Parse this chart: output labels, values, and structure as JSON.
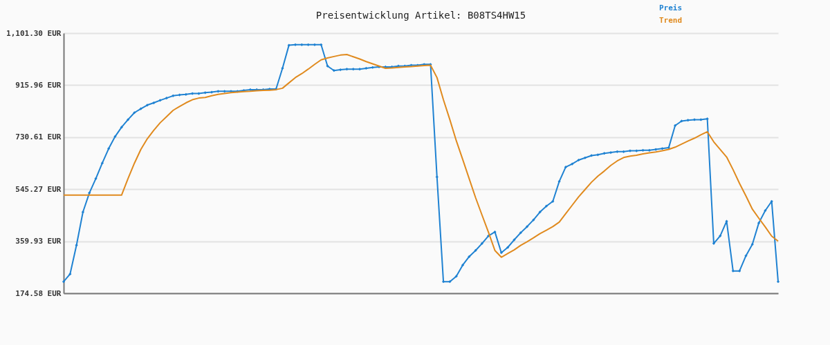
{
  "chart_data": {
    "type": "line",
    "title": "Preisentwicklung Artikel: B08TS4HW15",
    "categories": [
      null,
      null,
      null,
      null,
      null,
      null,
      null,
      null,
      null,
      null,
      null,
      null,
      null,
      null,
      null,
      null,
      null,
      null,
      null,
      null,
      null,
      null,
      null,
      null,
      null,
      null,
      null,
      null,
      null,
      null,
      null,
      null,
      null,
      null,
      null,
      null,
      null,
      null,
      null,
      null,
      null,
      null,
      null,
      null,
      null,
      null,
      null,
      null,
      null,
      null,
      null,
      null,
      null,
      null,
      null,
      null,
      null,
      null,
      null,
      null,
      null,
      null,
      null,
      null,
      null,
      null,
      null,
      null,
      null,
      null,
      null,
      null,
      null,
      null,
      null,
      null,
      null,
      null,
      null,
      null,
      null,
      null,
      null,
      null,
      null,
      null,
      null,
      null,
      null,
      null,
      null,
      null,
      null,
      null,
      null,
      null,
      null,
      null,
      null,
      null,
      null,
      null,
      null,
      null,
      null,
      null,
      null,
      null,
      null,
      null,
      null,
      null
    ],
    "series": [
      {
        "name": "Preis",
        "color": "#1f82d2",
        "marker": "diamond",
        "values": [
          216,
          243,
          346,
          464,
          532,
          583,
          638,
          690,
          733,
          766,
          793,
          818,
          832,
          845,
          853,
          862,
          870,
          878,
          881,
          883,
          886,
          886,
          889,
          891,
          894,
          894,
          894,
          894,
          897,
          900,
          900,
          900,
          902,
          902,
          976,
          1058,
          1060,
          1060,
          1060,
          1060,
          1060,
          984,
          968,
          971,
          973,
          973,
          973,
          976,
          979,
          981,
          981,
          981,
          984,
          984,
          987,
          987,
          990,
          990,
          589,
          216,
          216,
          235,
          275,
          305,
          327,
          352,
          379,
          393,
          319,
          338,
          365,
          390,
          412,
          436,
          464,
          485,
          502,
          573,
          624,
          635,
          649,
          657,
          665,
          668,
          673,
          676,
          679,
          679,
          682,
          682,
          684,
          684,
          687,
          690,
          693,
          772,
          788,
          791,
          793,
          793,
          796,
          352,
          379,
          431,
          254,
          254,
          308,
          349,
          425,
          469,
          502,
          216
        ]
      },
      {
        "name": "Trend",
        "color": "#e08a1e",
        "marker": "none",
        "values": [
          524,
          524,
          524,
          524,
          524,
          524,
          524,
          524,
          524,
          524,
          583,
          638,
          687,
          725,
          755,
          782,
          804,
          826,
          840,
          853,
          864,
          870,
          872,
          878,
          883,
          886,
          889,
          891,
          893,
          894,
          896,
          897,
          898,
          900,
          905,
          924,
          943,
          957,
          973,
          990,
          1006,
          1013,
          1018,
          1023,
          1025,
          1017,
          1009,
          1000,
          992,
          984,
          976,
          977,
          979,
          981,
          982,
          984,
          986,
          987,
          943,
          864,
          793,
          718,
          651,
          583,
          515,
          453,
          392,
          327,
          303,
          316,
          329,
          345,
          358,
          372,
          387,
          399,
          412,
          428,
          458,
          488,
          518,
          544,
          570,
          592,
          610,
          630,
          646,
          658,
          663,
          666,
          671,
          675,
          678,
          682,
          687,
          695,
          706,
          717,
          727,
          739,
          750,
          714,
          687,
          660,
          615,
          566,
          521,
          474,
          442,
          411,
          378,
          360
        ]
      }
    ],
    "ylim": [
      174.58,
      1101.3
    ],
    "yticks": [
      {
        "value": 174.58,
        "label": "174.58 EUR"
      },
      {
        "value": 359.93,
        "label": "359.93 EUR"
      },
      {
        "value": 545.27,
        "label": "545.27 EUR"
      },
      {
        "value": 730.61,
        "label": "730.61 EUR"
      },
      {
        "value": 915.96,
        "label": "915.96 EUR"
      },
      {
        "value": 1101.3,
        "label": "1,101.30 EUR"
      }
    ],
    "grid": "y",
    "legend": "top right"
  }
}
